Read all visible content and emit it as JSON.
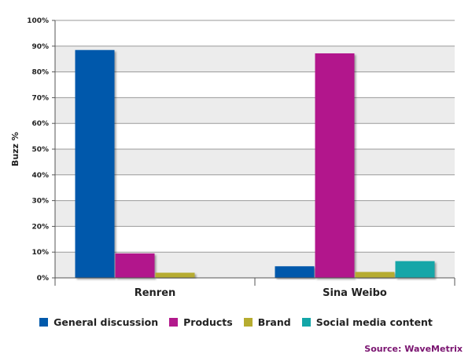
{
  "chart_data": {
    "type": "bar",
    "title": "",
    "xlabel": "",
    "ylabel": "Buzz %",
    "ylim": [
      0,
      100
    ],
    "yticks": [
      "0%",
      "10%",
      "20%",
      "30%",
      "40%",
      "50%",
      "60%",
      "70%",
      "80%",
      "90%",
      "100%"
    ],
    "categories": [
      "Renren",
      "Sina Weibo"
    ],
    "series": [
      {
        "name": "General discussion",
        "color": "#0059ab",
        "values": [
          88.5,
          4.5
        ]
      },
      {
        "name": "Products",
        "color": "#b2198c",
        "values": [
          9.5,
          87.2
        ]
      },
      {
        "name": "Brand",
        "color": "#b6ac30",
        "values": [
          2,
          2.3
        ]
      },
      {
        "name": "Social media content",
        "color": "#13a6a8",
        "values": [
          0,
          6.5
        ]
      }
    ],
    "grid": true,
    "legend_position": "bottom"
  },
  "source": {
    "text": "Source: WaveMetrix",
    "color": "#7a1470"
  }
}
